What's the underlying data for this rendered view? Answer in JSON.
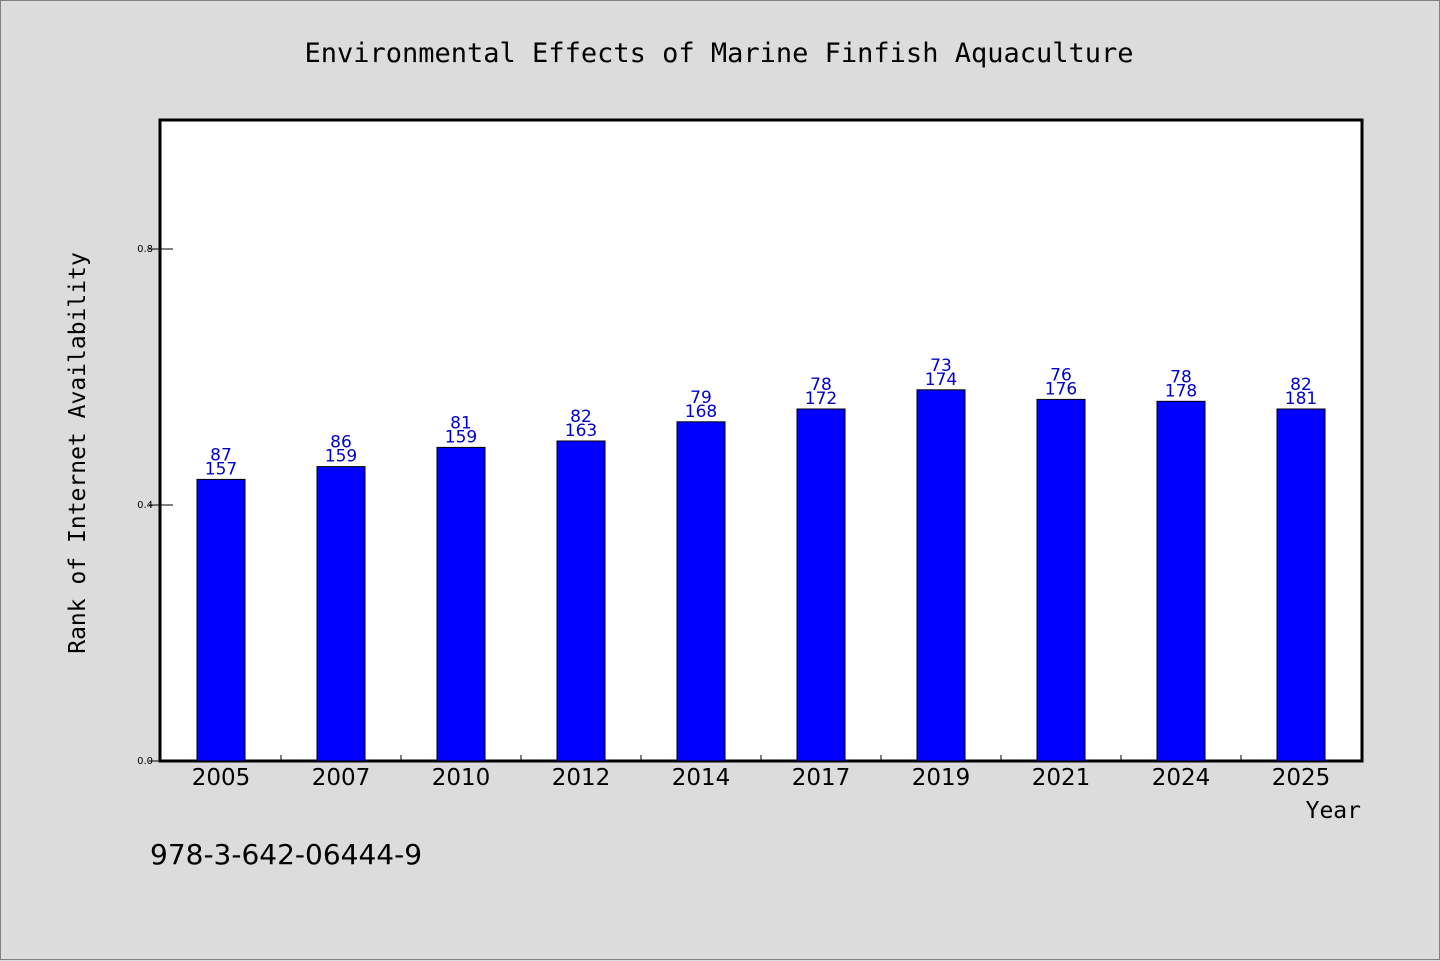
{
  "chart_data": {
    "type": "bar",
    "title": "Environmental Effects of Marine Finfish Aquaculture",
    "xlabel": "Year",
    "ylabel": "Rank of Internet Availability",
    "categories": [
      "2005",
      "2007",
      "2010",
      "2012",
      "2014",
      "2017",
      "2019",
      "2021",
      "2024",
      "2025"
    ],
    "values": [
      0.44,
      0.46,
      0.49,
      0.5,
      0.53,
      0.55,
      0.58,
      0.565,
      0.562,
      0.55
    ],
    "label_top": [
      "87",
      "86",
      "81",
      "82",
      "79",
      "78",
      "73",
      "76",
      "78",
      "82"
    ],
    "label_bottom": [
      "157",
      "159",
      "159",
      "163",
      "168",
      "172",
      "174",
      "176",
      "178",
      "181"
    ],
    "ylim": [
      0.0,
      1.0
    ],
    "yticks": [
      0.0,
      0.4,
      0.8
    ],
    "ytick_labels": [
      "0.0",
      "0.4",
      "0.8"
    ],
    "grid": false,
    "colors": {
      "bar": "#0000ff",
      "bar_edge": "#000000",
      "label": "#0000cc",
      "plot_bg": "#ffffff",
      "page_bg": "#dcdcdc"
    }
  },
  "footer_code": "978-3-642-06444-9"
}
